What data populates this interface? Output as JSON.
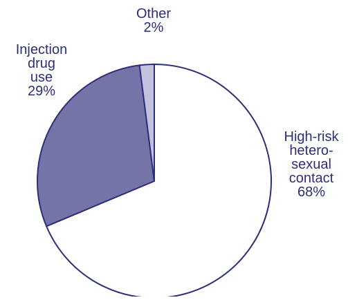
{
  "chart_data": {
    "type": "pie",
    "title": "",
    "slices": [
      {
        "label": "High-risk hetero-sexual contact",
        "value": 68,
        "color": "#ffffff"
      },
      {
        "label": "Injection drug use",
        "value": 29,
        "color": "#7474a8"
      },
      {
        "label": "Other",
        "value": 2,
        "color": "#c2c2dc"
      }
    ],
    "labels": {
      "other": "Other\n2%",
      "injection": "Injection\ndrug\nuse\n29%",
      "hetero": "High-risk\nhetero-\nsexual\ncontact\n68%"
    },
    "colors": {
      "outline": "#2d2e78",
      "text": "#2d2e78"
    }
  }
}
